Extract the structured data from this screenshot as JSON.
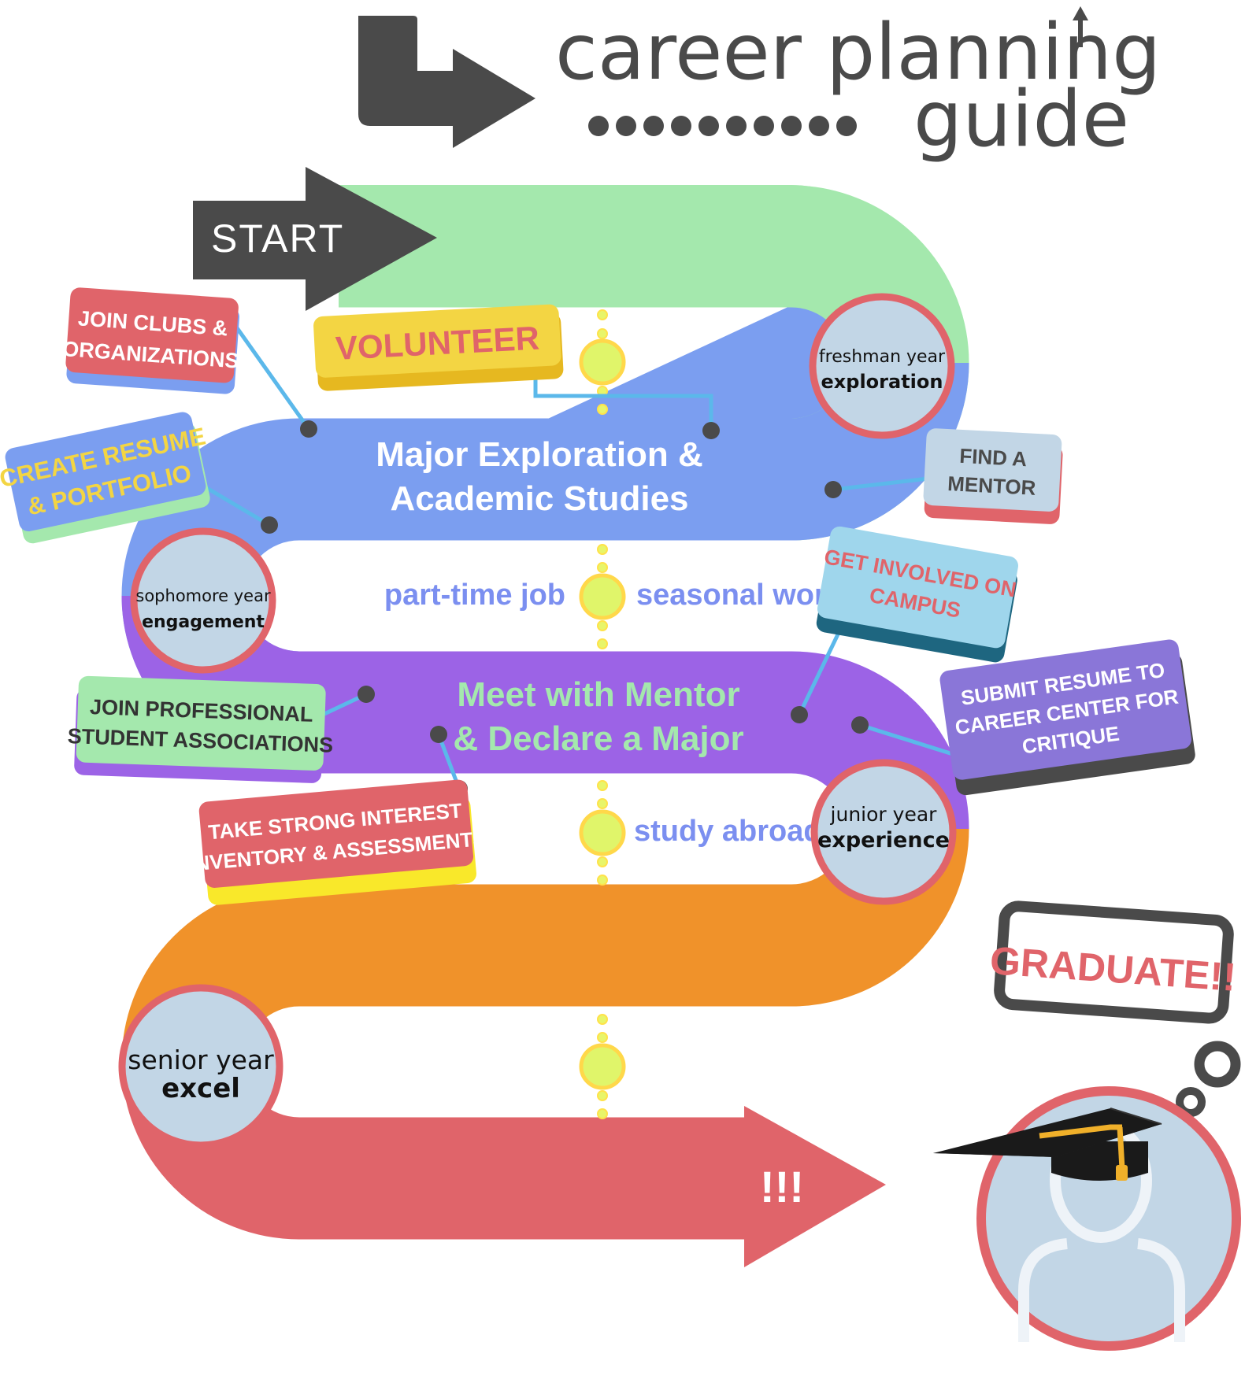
{
  "header": {
    "title_line1": "career planning",
    "title_line2": "guide",
    "colors": {
      "dark": "#4a4a4a"
    }
  },
  "start_label": "START",
  "stages": {
    "freshman": {
      "line1": "freshman year",
      "line2": "exploration"
    },
    "sophomore": {
      "line1": "sophomore year",
      "line2": "engagement"
    },
    "junior": {
      "line1": "junior year",
      "line2": "experience"
    },
    "senior": {
      "line1": "senior year",
      "line2": "excel"
    }
  },
  "ribbons": {
    "blue": {
      "line1": "Major Exploration &",
      "line2": "Academic Studies",
      "color": "#7b9ef0"
    },
    "purple": {
      "line1": "Meet with Mentor",
      "line2": "& Declare a Major",
      "color": "#9c63e6"
    },
    "green_color": "#a4e8ad",
    "orange_color": "#f0922a",
    "red_color": "#e0646a",
    "end_text": "!!!"
  },
  "between": {
    "part_time": "part-time job",
    "seasonal": "seasonal work",
    "study_abroad": "study abroad"
  },
  "tags": {
    "volunteer": "VOLUNTEER",
    "join_clubs_1": "JOIN CLUBS &",
    "join_clubs_2": "ORGANIZATIONS",
    "create_resume_1": "CREATE RESUME",
    "create_resume_2": "& PORTFOLIO",
    "find_mentor_1": "FIND A",
    "find_mentor_2": "MENTOR",
    "get_involved_1": "GET INVOLVED ON",
    "get_involved_2": "CAMPUS",
    "join_prof_1": "JOIN PROFESSIONAL",
    "join_prof_2": "STUDENT ASSOCIATIONS",
    "submit_1": "SUBMIT RESUME TO",
    "submit_2": "CAREER CENTER FOR",
    "submit_3": "CRITIQUE",
    "strong_1": "TAKE STRONG INTEREST",
    "strong_2": "INVENTORY & ASSESSMENTS",
    "graduate": "GRADUATE!!"
  }
}
